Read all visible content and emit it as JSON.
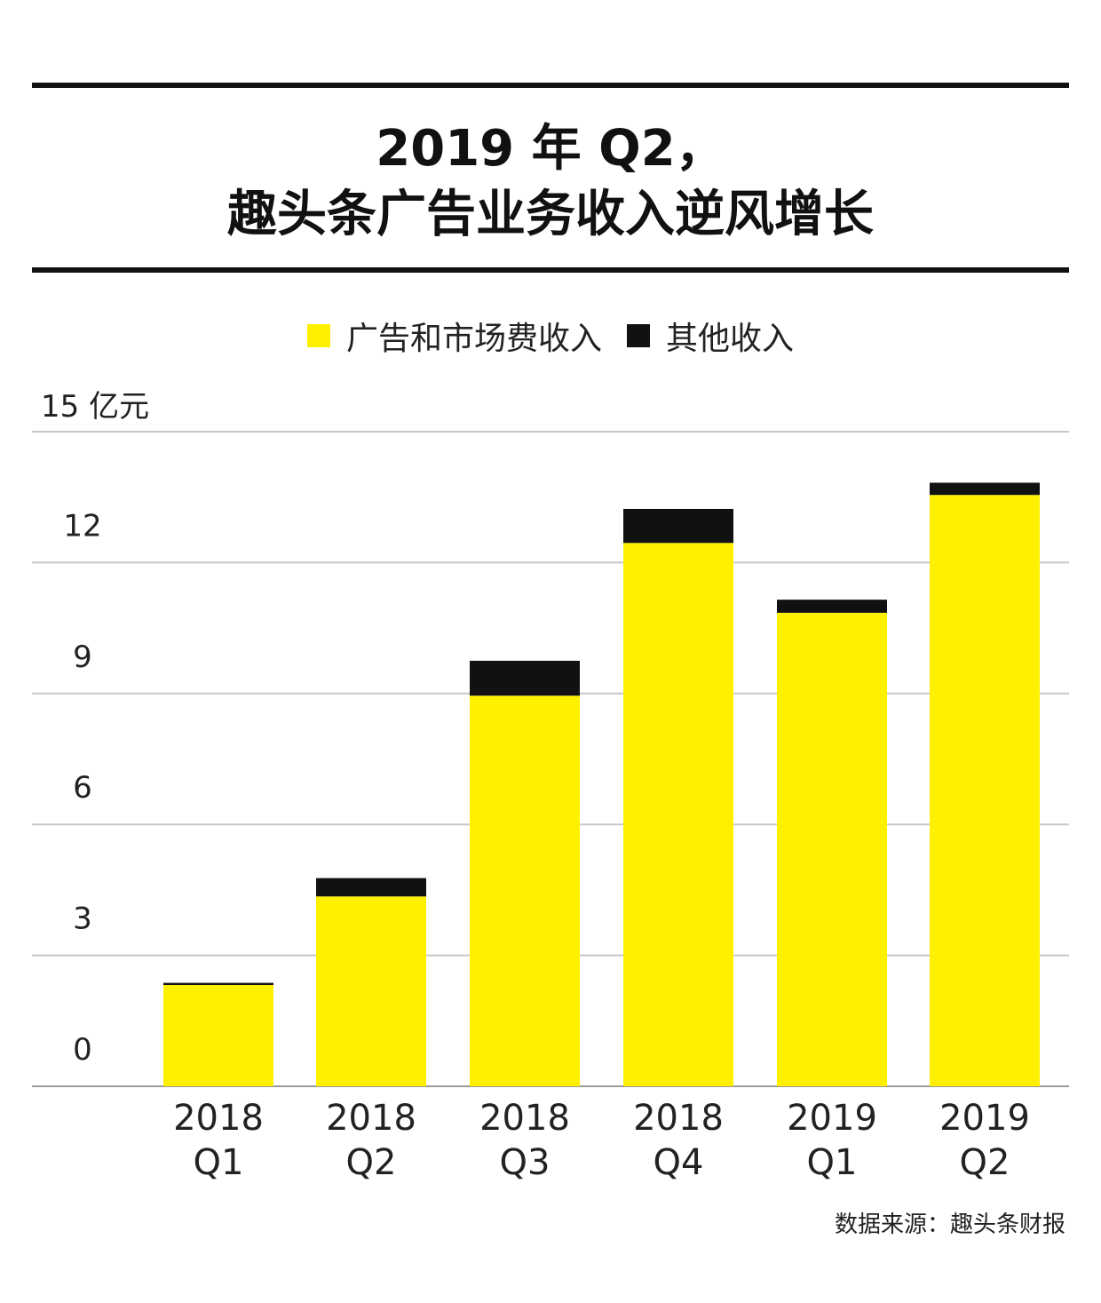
{
  "title": {
    "line1": "2019 年 Q2，",
    "line2": "趣头条广告业务收入逆风增长"
  },
  "colors": {
    "ad_revenue": "#FFF000",
    "other_revenue": "#111111",
    "grid": "#c8c8c8",
    "rule": "#111111"
  },
  "source": "数据来源：趣头条财报",
  "chart_data": {
    "type": "bar",
    "stacked": true,
    "unit": "亿元",
    "ylim": [
      0,
      15
    ],
    "yticks": [
      {
        "value": 0,
        "label": "0"
      },
      {
        "value": 3,
        "label": "3"
      },
      {
        "value": 6,
        "label": "6"
      },
      {
        "value": 9,
        "label": "9"
      },
      {
        "value": 12,
        "label": "12"
      },
      {
        "value": 15,
        "label": "15 亿元"
      }
    ],
    "grid": true,
    "legend_position": "top-center",
    "categories": [
      {
        "line1": "2018",
        "line2": "Q1"
      },
      {
        "line1": "2018",
        "line2": "Q2"
      },
      {
        "line1": "2018",
        "line2": "Q3"
      },
      {
        "line1": "2018",
        "line2": "Q4"
      },
      {
        "line1": "2019",
        "line2": "Q1"
      },
      {
        "line1": "2019",
        "line2": "Q2"
      }
    ],
    "series": [
      {
        "name": "广告和市场费收入",
        "color": "#FFF000",
        "values": [
          2.32,
          4.35,
          8.95,
          12.45,
          10.85,
          13.55
        ]
      },
      {
        "name": "其他收入",
        "color": "#111111",
        "values": [
          0.05,
          0.42,
          0.8,
          0.78,
          0.3,
          0.28
        ]
      }
    ]
  }
}
